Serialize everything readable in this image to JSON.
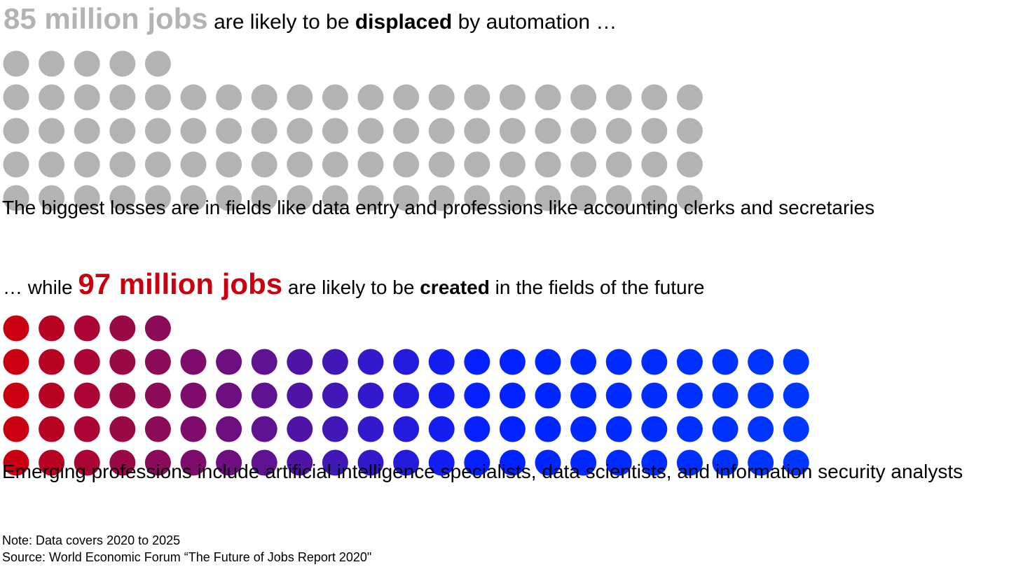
{
  "displaced": {
    "figure": "85 million jobs",
    "text_before": "are likely to be",
    "keyword": "displaced",
    "text_after": "by automation …",
    "description": "The biggest losses are in fields like data entry and professions like accounting clerks and secretaries",
    "dot_color": "#b3b3b3"
  },
  "created": {
    "lead": "… while",
    "figure": "97 million jobs",
    "text_before": "are likely to be",
    "keyword": "created",
    "text_after": "in the fields of the future",
    "description": "Emerging professions include artificial intelligence specialists, data scientists, and information security analysts",
    "color_start": "#c8000f",
    "color_end": "#8c0a5a"
  },
  "note": "Note: Data covers 2020 to 2025",
  "source": "Source: World Economic Forum “The Future of Jobs Report 2020\"",
  "chart_data": [
    {
      "type": "pictogram",
      "series": [
        {
          "name": "displaced by automation",
          "unit": "million jobs",
          "value": 85
        }
      ],
      "dots_per_row": 21,
      "dot_color": "#b3b3b3"
    },
    {
      "type": "pictogram",
      "series": [
        {
          "name": "created in the fields of the future",
          "unit": "million jobs",
          "value": 97
        }
      ],
      "dots_per_row": 24,
      "gradient": [
        "#c8000f",
        "#8c0a5a"
      ]
    }
  ]
}
